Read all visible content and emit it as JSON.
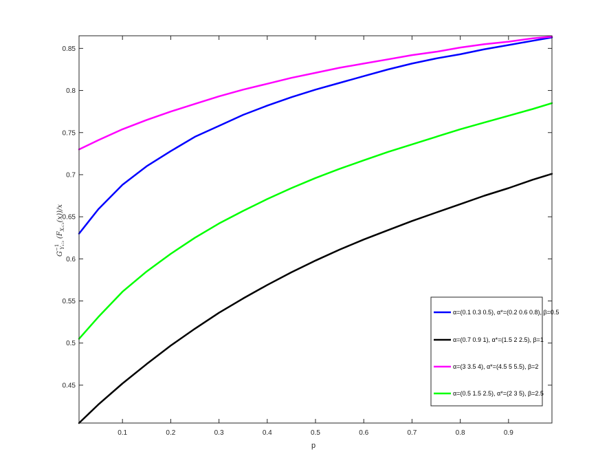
{
  "chart_data": {
    "type": "line",
    "title": "",
    "xlabel": "p",
    "ylabel": {
      "main": "G",
      "sup": "−1",
      "sub": "Y₁:₃",
      "rest": "(F",
      "inner_sub": "X₁:₃",
      "tail": "(x))/x"
    },
    "xlim": [
      0.01,
      0.99
    ],
    "ylim": [
      0.405,
      0.865
    ],
    "xticks": [
      0.1,
      0.2,
      0.3,
      0.4,
      0.5,
      0.6,
      0.7,
      0.8,
      0.9
    ],
    "xtick_labels": [
      "0.1",
      "0.2",
      "0.3",
      "0.4",
      "0.5",
      "0.6",
      "0.7",
      "0.8",
      "0.9"
    ],
    "yticks": [
      0.45,
      0.5,
      0.55,
      0.6,
      0.65,
      0.7,
      0.75,
      0.8,
      0.85
    ],
    "ytick_labels": [
      "0.45",
      "0.5",
      "0.55",
      "0.6",
      "0.65",
      "0.7",
      "0.75",
      "0.8",
      "0.85"
    ],
    "grid": false,
    "legend_position": "right",
    "series": [
      {
        "name": "α=(0.1 0.3 0.5), α*=(0.2 0.6 0.8), β=0.5",
        "color": "#0000ff",
        "x": [
          0.01,
          0.05,
          0.1,
          0.15,
          0.2,
          0.25,
          0.3,
          0.35,
          0.4,
          0.45,
          0.5,
          0.55,
          0.6,
          0.65,
          0.7,
          0.75,
          0.8,
          0.85,
          0.9,
          0.95,
          0.99
        ],
        "y": [
          0.63,
          0.659,
          0.688,
          0.71,
          0.728,
          0.745,
          0.758,
          0.771,
          0.782,
          0.792,
          0.801,
          0.809,
          0.817,
          0.825,
          0.832,
          0.838,
          0.843,
          0.849,
          0.854,
          0.859,
          0.863
        ]
      },
      {
        "name": "α=(0.7 0.9 1), α*=(1.5 2 2.5), β=1",
        "color": "#000000",
        "x": [
          0.01,
          0.05,
          0.1,
          0.15,
          0.2,
          0.25,
          0.3,
          0.35,
          0.4,
          0.45,
          0.5,
          0.55,
          0.6,
          0.65,
          0.7,
          0.75,
          0.8,
          0.85,
          0.9,
          0.95,
          0.99
        ],
        "y": [
          0.405,
          0.427,
          0.452,
          0.475,
          0.497,
          0.517,
          0.536,
          0.553,
          0.569,
          0.584,
          0.598,
          0.611,
          0.623,
          0.634,
          0.645,
          0.655,
          0.665,
          0.675,
          0.684,
          0.694,
          0.701
        ]
      },
      {
        "name": "α=(3 3.5 4), α*=(4.5 5 5.5), β=2",
        "color": "#ff00ff",
        "x": [
          0.01,
          0.05,
          0.1,
          0.15,
          0.2,
          0.25,
          0.3,
          0.35,
          0.4,
          0.45,
          0.5,
          0.55,
          0.6,
          0.65,
          0.7,
          0.75,
          0.8,
          0.85,
          0.9,
          0.95,
          0.99
        ],
        "y": [
          0.73,
          0.741,
          0.754,
          0.765,
          0.775,
          0.784,
          0.793,
          0.801,
          0.808,
          0.815,
          0.821,
          0.827,
          0.832,
          0.837,
          0.842,
          0.846,
          0.851,
          0.855,
          0.858,
          0.862,
          0.864
        ]
      },
      {
        "name": "α=(0.5 1.5 2.5), α*=(2 3 5), β=2.5",
        "color": "#00ff00",
        "x": [
          0.01,
          0.05,
          0.1,
          0.15,
          0.2,
          0.25,
          0.3,
          0.35,
          0.4,
          0.45,
          0.5,
          0.55,
          0.6,
          0.65,
          0.7,
          0.75,
          0.8,
          0.85,
          0.9,
          0.95,
          0.99
        ],
        "y": [
          0.505,
          0.531,
          0.561,
          0.585,
          0.606,
          0.625,
          0.642,
          0.657,
          0.671,
          0.684,
          0.696,
          0.707,
          0.717,
          0.727,
          0.736,
          0.745,
          0.754,
          0.762,
          0.77,
          0.778,
          0.785
        ]
      }
    ]
  }
}
